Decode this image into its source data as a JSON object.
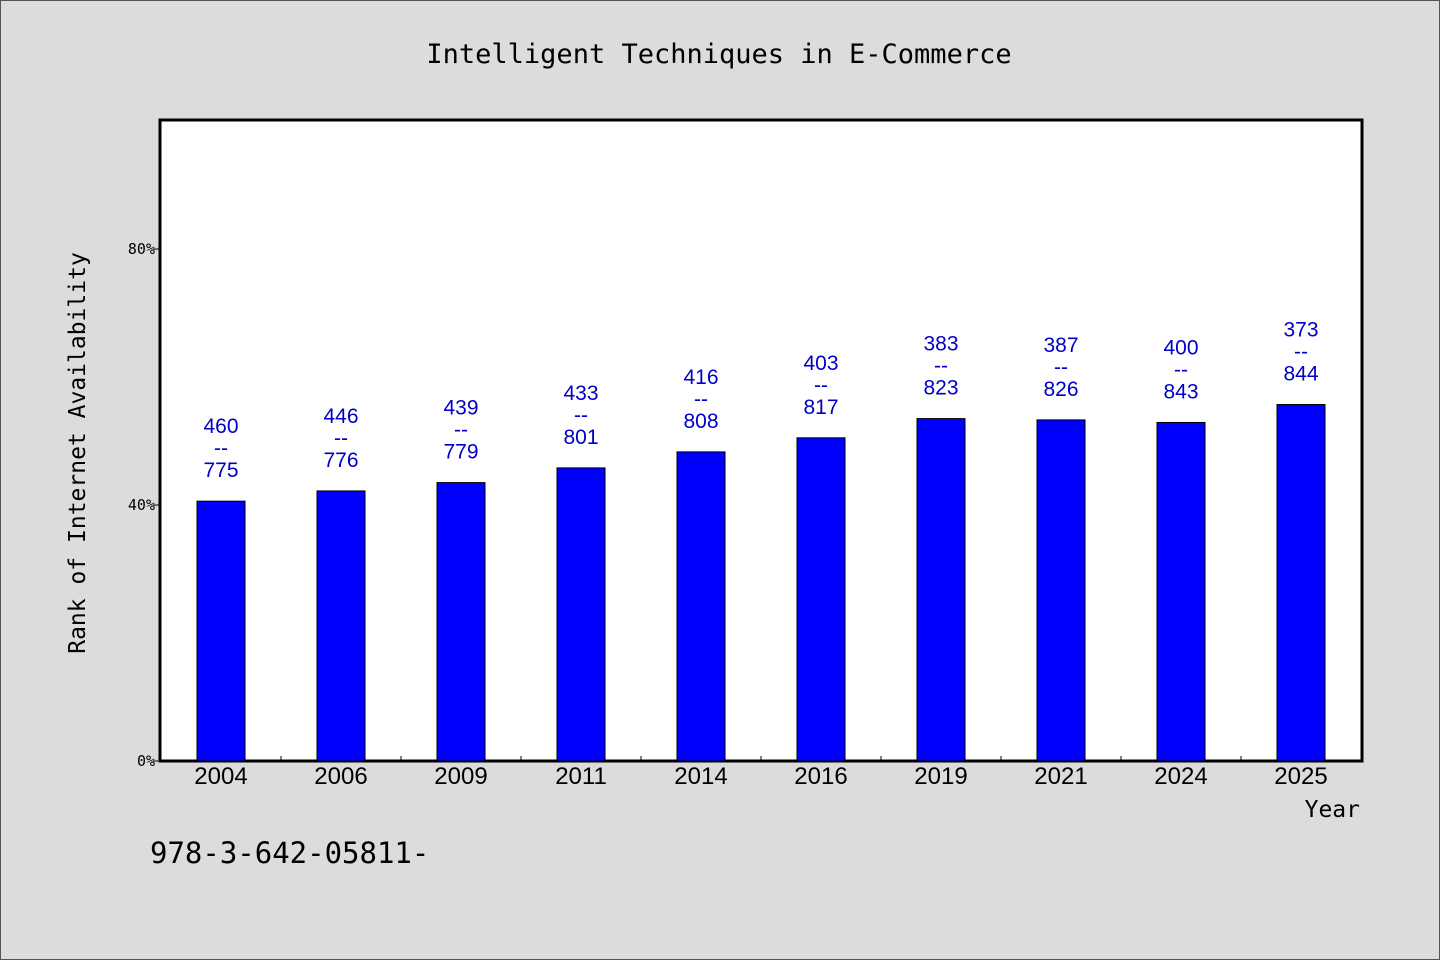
{
  "chart_data": {
    "type": "bar",
    "title": "Intelligent Techniques in E-Commerce",
    "xlabel": "Year",
    "ylabel": "Rank of Internet Availability",
    "categories": [
      "2004",
      "2006",
      "2009",
      "2011",
      "2014",
      "2016",
      "2019",
      "2021",
      "2024",
      "2025"
    ],
    "values": [
      40.6,
      42.2,
      43.5,
      45.8,
      48.3,
      50.5,
      53.5,
      53.3,
      52.9,
      55.7
    ],
    "data_labels": [
      {
        "top": "460",
        "mid": "--",
        "bottom": "775"
      },
      {
        "top": "446",
        "mid": "--",
        "bottom": "776"
      },
      {
        "top": "439",
        "mid": "--",
        "bottom": "779"
      },
      {
        "top": "433",
        "mid": "--",
        "bottom": "801"
      },
      {
        "top": "416",
        "mid": "--",
        "bottom": "808"
      },
      {
        "top": "403",
        "mid": "--",
        "bottom": "817"
      },
      {
        "top": "383",
        "mid": "--",
        "bottom": "823"
      },
      {
        "top": "387",
        "mid": "--",
        "bottom": "826"
      },
      {
        "top": "400",
        "mid": "--",
        "bottom": "843"
      },
      {
        "top": "373",
        "mid": "--",
        "bottom": "844"
      }
    ],
    "ylim": [
      0,
      100
    ],
    "yticks": [
      0,
      40,
      80
    ],
    "ytick_labels": [
      "0%",
      "40%",
      "80%"
    ],
    "grid": false,
    "bar_color": "#0000ff",
    "label_color": "#0000c8"
  },
  "footnote": "978-3-642-05811-"
}
